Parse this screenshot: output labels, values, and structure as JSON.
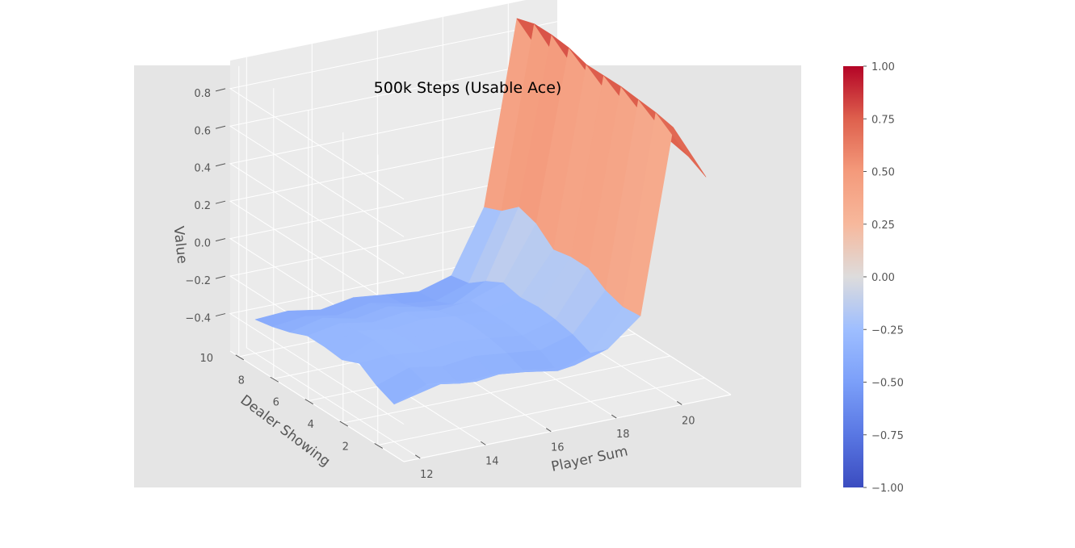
{
  "chart_data": {
    "type": "surface3d",
    "title": "500k Steps (Usable Ace)",
    "xlabel": "Player Sum",
    "ylabel": "Dealer Showing",
    "zlabel": "Value",
    "x": [
      12,
      13,
      14,
      15,
      16,
      17,
      18,
      19,
      20,
      21
    ],
    "y": [
      1,
      2,
      3,
      4,
      5,
      6,
      7,
      8,
      9,
      10
    ],
    "x_ticks": [
      "12",
      "14",
      "16",
      "18",
      "20"
    ],
    "y_ticks": [
      "2",
      "4",
      "6",
      "8",
      "10"
    ],
    "z_ticks": [
      "−0.4",
      "−0.2",
      "0.0",
      "0.2",
      "0.4",
      "0.6",
      "0.8"
    ],
    "z_tick_values": [
      -0.4,
      -0.2,
      0.0,
      0.2,
      0.4,
      0.6,
      0.8
    ],
    "xlim": [
      11.5,
      21.5
    ],
    "ylim": [
      0.5,
      10.5
    ],
    "zlim": [
      -0.6,
      0.95
    ],
    "z": [
      [
        -0.3,
        -0.26,
        -0.29,
        -0.27,
        -0.3,
        -0.31,
        -0.26,
        -0.12,
        0.85,
        0.55
      ],
      [
        -0.4,
        -0.33,
        -0.36,
        -0.35,
        -0.37,
        -0.4,
        -0.34,
        -0.13,
        0.87,
        0.6
      ],
      [
        -0.36,
        -0.3,
        -0.33,
        -0.31,
        -0.33,
        -0.35,
        -0.3,
        -0.1,
        0.88,
        0.62
      ],
      [
        -0.3,
        -0.29,
        -0.31,
        -0.29,
        -0.31,
        -0.33,
        -0.28,
        -0.04,
        0.89,
        0.63
      ],
      [
        -0.34,
        -0.27,
        -0.3,
        -0.28,
        -0.3,
        -0.32,
        -0.27,
        -0.04,
        0.89,
        0.63
      ],
      [
        -0.33,
        -0.28,
        -0.31,
        -0.29,
        -0.31,
        -0.32,
        -0.28,
        -0.06,
        0.89,
        0.62
      ],
      [
        -0.33,
        -0.3,
        -0.33,
        -0.31,
        -0.34,
        -0.32,
        -0.26,
        0.02,
        0.92,
        0.65
      ],
      [
        -0.37,
        -0.33,
        -0.37,
        -0.34,
        -0.38,
        -0.4,
        -0.31,
        0.05,
        0.93,
        0.64
      ],
      [
        -0.4,
        -0.38,
        -0.41,
        -0.38,
        -0.42,
        -0.44,
        -0.38,
        -0.03,
        0.93,
        0.63
      ],
      [
        -0.42,
        -0.41,
        -0.44,
        -0.41,
        -0.43,
        -0.45,
        -0.4,
        -0.07,
        0.9,
        0.61
      ]
    ],
    "colormap": "coolwarm",
    "colorbar": {
      "min": -1.0,
      "max": 1.0,
      "ticks": [
        "−1.00",
        "−0.75",
        "−0.50",
        "−0.25",
        "0.00",
        "0.25",
        "0.50",
        "0.75",
        "1.00"
      ],
      "tick_values": [
        -1.0,
        -0.75,
        -0.5,
        -0.25,
        0.0,
        0.25,
        0.5,
        0.75,
        1.0
      ]
    },
    "grid": true,
    "colors": {
      "axes_background": "#e5e5e5",
      "pane_background": "#ebebeb",
      "grid": "#ffffff"
    }
  }
}
